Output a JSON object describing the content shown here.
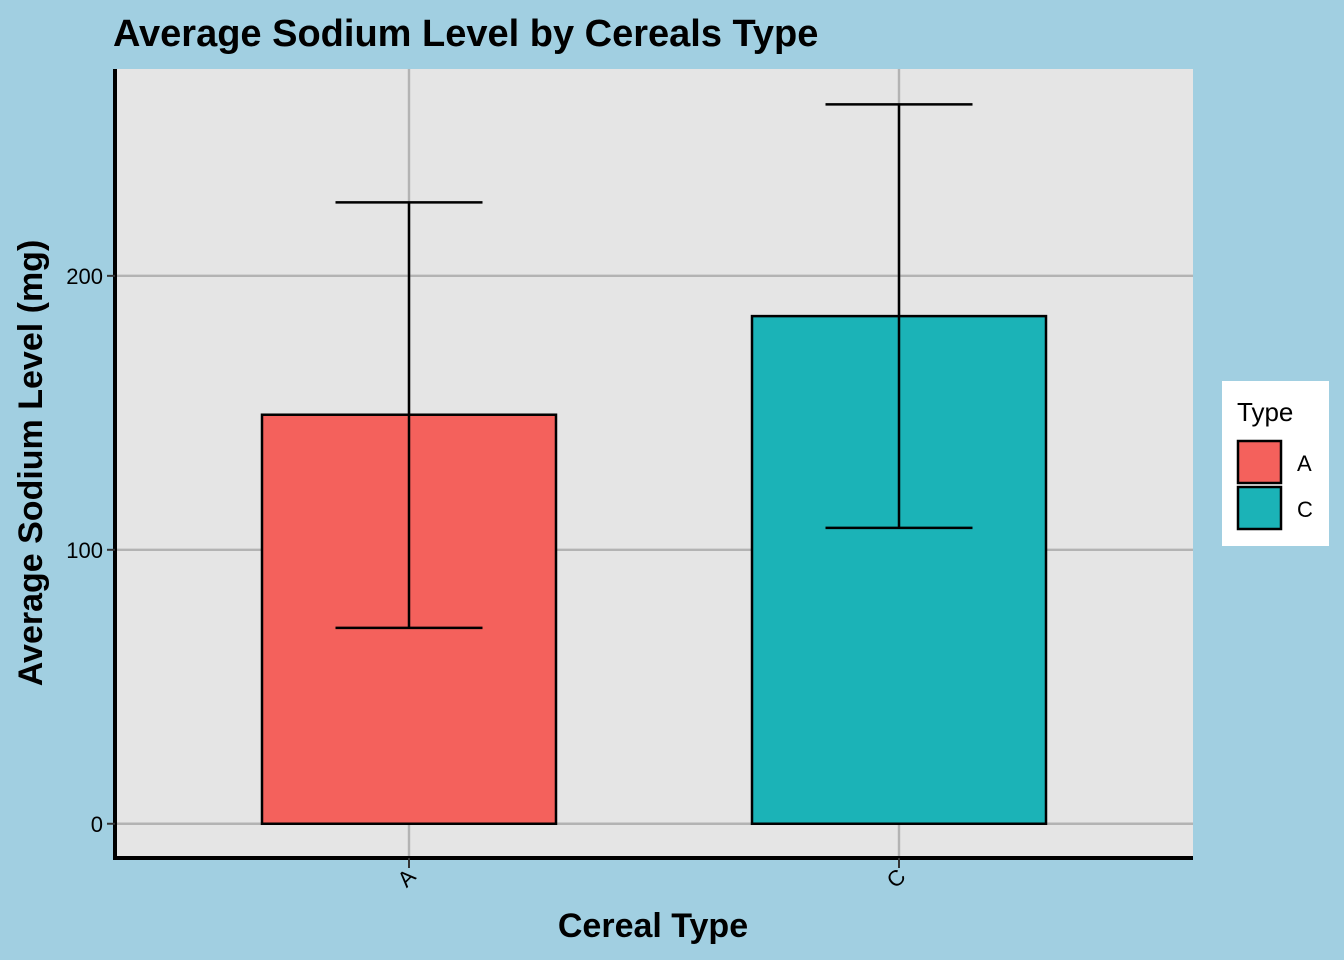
{
  "chart_data": {
    "type": "bar",
    "title": "Average Sodium Level by Cereals Type",
    "xlabel": "Cereal Type",
    "ylabel": "Average Sodium Level (mg)",
    "categories": [
      "A",
      "C"
    ],
    "values": [
      149.3,
      185.3
    ],
    "error_bars": [
      {
        "low": 71.5,
        "high": 226.8
      },
      {
        "low": 108.0,
        "high": 262.6
      }
    ],
    "colors": [
      "#f4615c",
      "#1bb3b7"
    ],
    "ylim": [
      -12.5,
      275.5
    ],
    "yticks": [
      0,
      100,
      200
    ],
    "ytick_labels": [
      "0",
      "100",
      "200"
    ],
    "grid": true,
    "legend": {
      "title": "Type",
      "placement": "right",
      "entries": [
        "A",
        "C"
      ]
    },
    "background": "#a1cfe1",
    "panel_background": "#e5e5e5"
  }
}
